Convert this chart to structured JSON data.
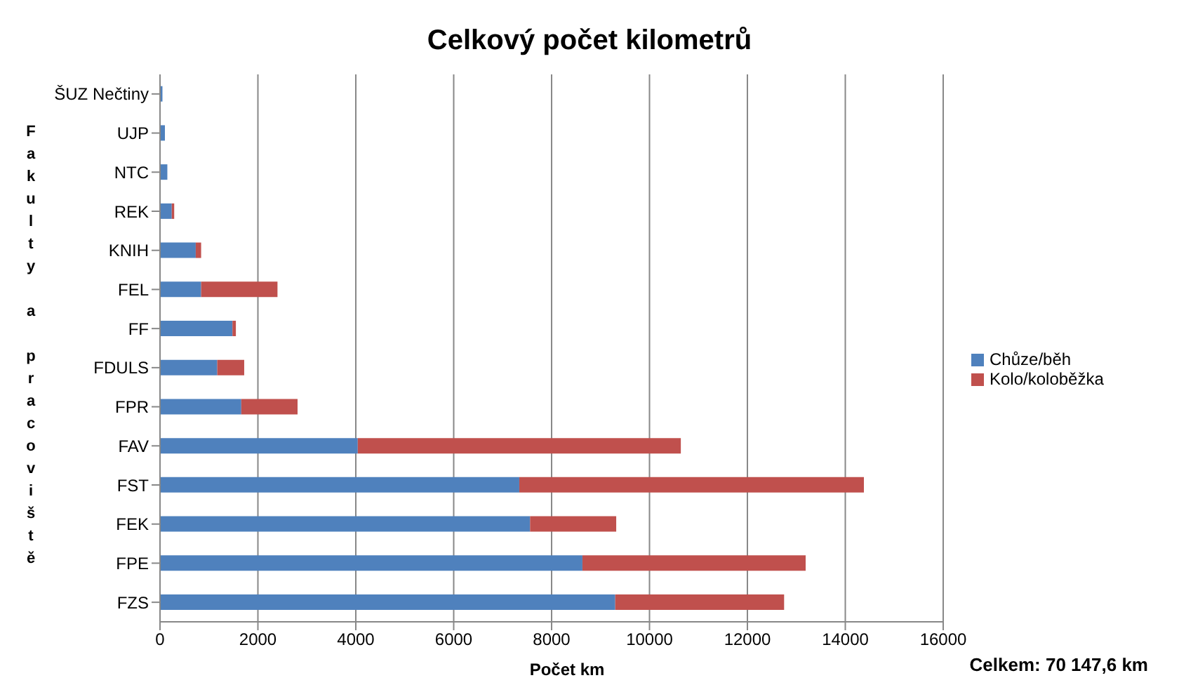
{
  "chart_data": {
    "type": "bar",
    "orientation": "horizontal",
    "stacked": true,
    "title": "Celkový počet kilometrů",
    "xlabel": "Počet km",
    "ylabel": "Fakulty a pracoviště",
    "categories": [
      "ŠUZ Nečtiny",
      "UJP",
      "NTC",
      "REK",
      "KNIH",
      "FEL",
      "FF",
      "FDULS",
      "FPR",
      "FAV",
      "FST",
      "FEK",
      "FPE",
      "FZS"
    ],
    "series": [
      {
        "name": "Chůze/běh",
        "color": "#4f81bd",
        "values": [
          50,
          100,
          150,
          240,
          730,
          840,
          1480,
          1170,
          1660,
          4040,
          7340,
          7560,
          8630,
          9300
        ]
      },
      {
        "name": "Kolo/koloběžka",
        "color": "#c0504d",
        "values": [
          null,
          null,
          null,
          50,
          110,
          1560,
          70,
          550,
          1150,
          6600,
          7040,
          1760,
          4560,
          3450
        ]
      }
    ],
    "xlim": [
      0,
      16000
    ],
    "xticks": [
      0,
      2000,
      4000,
      6000,
      8000,
      10000,
      12000,
      14000,
      16000
    ],
    "grid": "x",
    "legend": "right",
    "annotations": [
      "Celkem: 70 147,6 km"
    ]
  }
}
